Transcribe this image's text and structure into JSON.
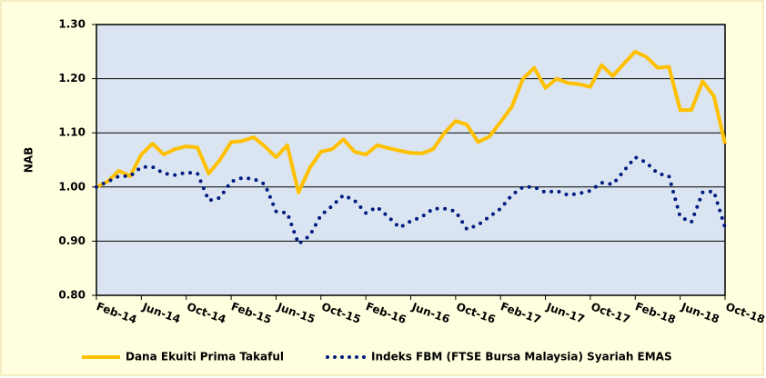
{
  "chart_data": {
    "type": "line",
    "ylabel": "NAB",
    "categories": [
      "Feb-14",
      null,
      null,
      null,
      "Jun-14",
      null,
      null,
      null,
      "Oct-14",
      null,
      null,
      null,
      "Feb-15",
      null,
      null,
      null,
      "Jun-15",
      null,
      null,
      null,
      "Oct-15",
      null,
      null,
      null,
      "Feb-16",
      null,
      null,
      null,
      "Jun-16",
      null,
      null,
      null,
      "Oct-16",
      null,
      null,
      null,
      "Feb-17",
      null,
      null,
      null,
      "Jun-17",
      null,
      null,
      null,
      "Oct-17",
      null,
      null,
      null,
      "Feb-18",
      null,
      null,
      null,
      "Jun-18",
      null,
      null,
      null,
      "Oct-18"
    ],
    "series": [
      {
        "name": "Dana Ekuiti Prima Takaful",
        "color": "#ffc000",
        "style": "solid",
        "values": [
          1.0,
          1.01,
          1.03,
          1.02,
          1.06,
          1.08,
          1.06,
          1.07,
          1.075,
          1.073,
          1.025,
          1.05,
          1.083,
          1.085,
          1.092,
          1.075,
          1.055,
          1.077,
          0.99,
          1.035,
          1.065,
          1.07,
          1.088,
          1.065,
          1.06,
          1.077,
          1.072,
          1.067,
          1.063,
          1.062,
          1.07,
          1.1,
          1.122,
          1.115,
          1.083,
          1.093,
          1.12,
          1.148,
          1.2,
          1.22,
          1.183,
          1.2,
          1.192,
          1.19,
          1.185,
          1.225,
          1.205,
          1.228,
          1.25,
          1.24,
          1.22,
          1.222,
          1.142,
          1.142,
          1.195,
          1.168,
          1.08
        ]
      },
      {
        "name": "Indeks FBM (FTSE Bursa Malaysia) Syariah EMAS",
        "color": "#001a80",
        "style": "dotted",
        "values": [
          1.0,
          1.01,
          1.02,
          1.02,
          1.037,
          1.037,
          1.025,
          1.022,
          1.027,
          1.025,
          0.975,
          0.98,
          1.01,
          1.017,
          1.015,
          1.005,
          0.955,
          0.952,
          0.895,
          0.91,
          0.948,
          0.965,
          0.985,
          0.975,
          0.952,
          0.963,
          0.945,
          0.925,
          0.937,
          0.945,
          0.96,
          0.96,
          0.955,
          0.922,
          0.93,
          0.945,
          0.96,
          0.985,
          1.0,
          1.0,
          0.99,
          0.993,
          0.985,
          0.988,
          0.993,
          1.008,
          1.005,
          1.03,
          1.055,
          1.045,
          1.025,
          1.02,
          0.945,
          0.935,
          0.99,
          0.992,
          0.925
        ]
      }
    ],
    "ylim": [
      0.8,
      1.3
    ],
    "yticks": [
      {
        "value": 0.8,
        "label": "0.80"
      },
      {
        "value": 0.9,
        "label": "0.90"
      },
      {
        "value": 1.0,
        "label": "1.00"
      },
      {
        "value": 1.1,
        "label": "1.10"
      },
      {
        "value": 1.2,
        "label": "1.20"
      },
      {
        "value": 1.3,
        "label": "1.30"
      }
    ],
    "grid": true
  }
}
